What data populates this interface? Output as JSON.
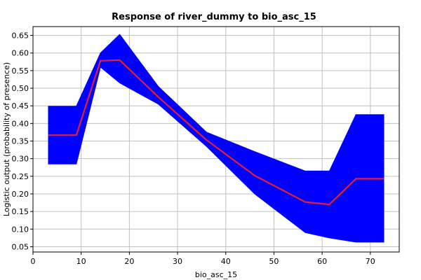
{
  "chart_data": {
    "type": "line",
    "title": "Response of river_dummy to bio_asc_15",
    "xlabel": "bio_asc_15",
    "ylabel": "Logistic output (probability of presence)",
    "xlim": [
      0,
      76
    ],
    "ylim": [
      0.035,
      0.675
    ],
    "xticks": [
      0,
      10,
      20,
      30,
      40,
      50,
      60,
      70
    ],
    "yticks": [
      0.05,
      0.1,
      0.15,
      0.2,
      0.25,
      0.3,
      0.35,
      0.4,
      0.45,
      0.5,
      0.55,
      0.6,
      0.65
    ],
    "grid": true,
    "colors": {
      "band": "#0000ff",
      "line": "#e01e3c",
      "grid": "#c0c0c0"
    },
    "series": [
      {
        "values": {
          "x": [
            3.2,
            9.0,
            14.0,
            18.0,
            26.0,
            36.0,
            46.0,
            56.5,
            61.5,
            67.0,
            72.8
          ],
          "y": [
            0.367,
            0.367,
            0.578,
            0.58,
            0.475,
            0.353,
            0.252,
            0.177,
            0.17,
            0.243,
            0.243
          ]
        }
      }
    ],
    "band": {
      "x": [
        3.2,
        9.0,
        14.0,
        18.0,
        26.0,
        36.0,
        46.0,
        56.5,
        61.5,
        67.0,
        72.8
      ],
      "upper": [
        0.449,
        0.449,
        0.6,
        0.653,
        0.505,
        0.375,
        0.32,
        0.265,
        0.265,
        0.425,
        0.425
      ],
      "lower": [
        0.285,
        0.285,
        0.56,
        0.515,
        0.455,
        0.335,
        0.2,
        0.09,
        0.075,
        0.063,
        0.063
      ]
    }
  }
}
